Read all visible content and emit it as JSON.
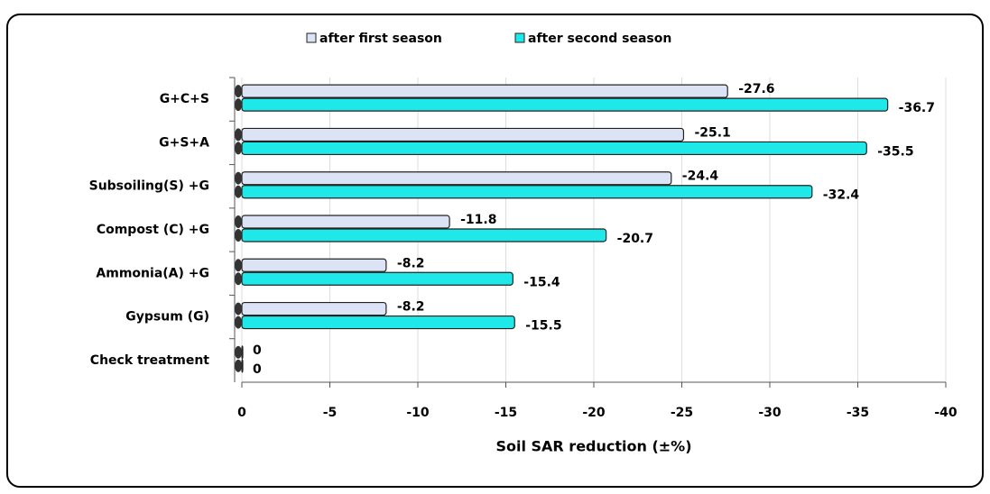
{
  "chart_data": {
    "type": "hbar",
    "xlabel": "Soil SAR reduction (±%)",
    "categories": [
      "G+C+S",
      "G+S+A",
      "Subsoiling(S) +G",
      "Compost (C) +G",
      "Ammonia(A) +G",
      "Gypsum (G)",
      "Check treatment"
    ],
    "series": [
      {
        "name": "after first season",
        "color": "#dce3f4",
        "values": [
          -27.6,
          -25.1,
          -24.4,
          -11.8,
          -8.2,
          -8.2,
          0
        ]
      },
      {
        "name": "after second season",
        "color": "#1ee8e8",
        "values": [
          -36.7,
          -35.5,
          -32.4,
          -20.7,
          -15.4,
          -15.5,
          0
        ]
      }
    ],
    "xlim": [
      0,
      -40
    ],
    "xticks": [
      0,
      -5,
      -10,
      -15,
      -20,
      -25,
      -30,
      -35,
      -40
    ],
    "grid": true,
    "legend": "top"
  }
}
